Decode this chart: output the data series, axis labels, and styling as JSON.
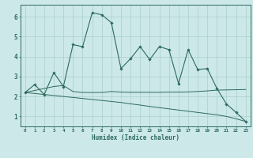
{
  "xlabel": "Humidex (Indice chaleur)",
  "bg_color": "#cce8e8",
  "line_color": "#2d6b5e",
  "grid_color": "#afd4d0",
  "xlim": [
    -0.5,
    23.5
  ],
  "ylim": [
    0.5,
    6.6
  ],
  "yticks": [
    1,
    2,
    3,
    4,
    5,
    6
  ],
  "xticks": [
    0,
    1,
    2,
    3,
    4,
    5,
    6,
    7,
    8,
    9,
    10,
    11,
    12,
    13,
    14,
    15,
    16,
    17,
    18,
    19,
    20,
    21,
    22,
    23
  ],
  "line1_x": [
    0,
    1,
    2,
    3,
    4,
    5,
    6,
    7,
    8,
    9,
    10,
    11,
    12,
    13,
    14,
    15,
    16,
    17,
    18,
    19,
    20,
    21,
    22,
    23
  ],
  "line1_y": [
    2.2,
    2.6,
    2.1,
    3.2,
    2.5,
    4.6,
    4.5,
    6.2,
    6.1,
    5.7,
    3.4,
    3.9,
    4.5,
    3.85,
    4.5,
    4.35,
    2.65,
    4.35,
    3.35,
    3.4,
    2.4,
    1.62,
    1.2,
    0.75
  ],
  "line2_x": [
    0,
    3,
    4,
    5,
    6,
    7,
    8,
    9,
    10,
    11,
    12,
    13,
    14,
    15,
    16,
    17,
    18,
    19,
    20,
    21,
    22,
    23
  ],
  "line2_y": [
    2.2,
    2.5,
    2.55,
    2.25,
    2.2,
    2.2,
    2.2,
    2.25,
    2.22,
    2.21,
    2.21,
    2.21,
    2.21,
    2.22,
    2.22,
    2.23,
    2.25,
    2.28,
    2.32,
    2.33,
    2.34,
    2.35
  ],
  "line3_x": [
    0,
    1,
    2,
    3,
    4,
    5,
    6,
    7,
    8,
    9,
    10,
    11,
    12,
    13,
    14,
    15,
    16,
    17,
    18,
    19,
    20,
    21,
    22,
    23
  ],
  "line3_y": [
    2.2,
    2.15,
    2.1,
    2.05,
    2.0,
    1.95,
    1.9,
    1.85,
    1.8,
    1.75,
    1.7,
    1.63,
    1.57,
    1.5,
    1.44,
    1.38,
    1.32,
    1.26,
    1.2,
    1.14,
    1.08,
    1.0,
    0.88,
    0.75
  ]
}
